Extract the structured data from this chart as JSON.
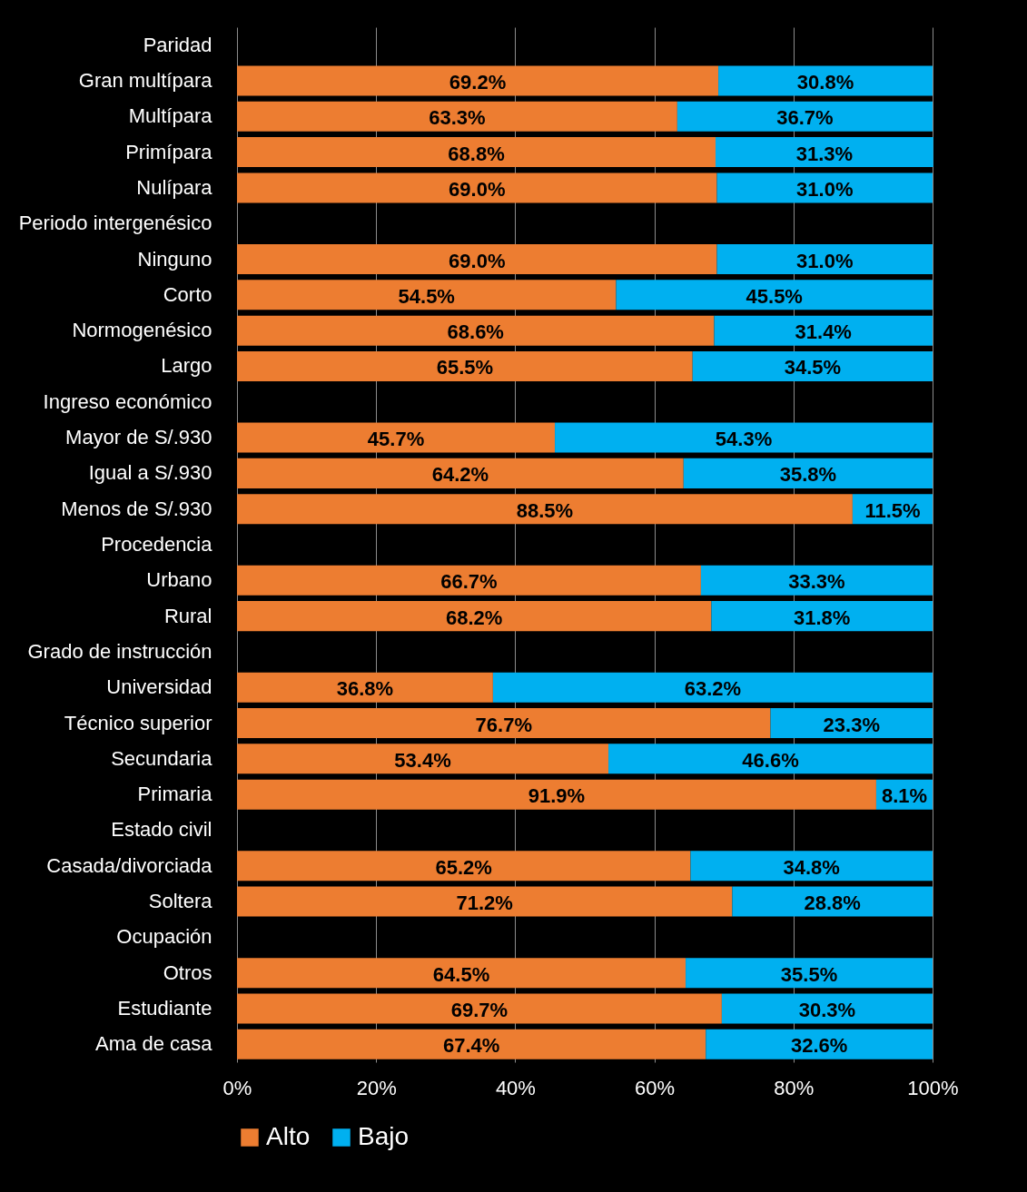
{
  "chart_data": {
    "type": "bar",
    "orientation": "horizontal",
    "stacked": true,
    "categories": [
      "Paridad",
      "Gran multípara",
      "Multípara",
      "Primípara",
      "Nulípara",
      "Periodo intergenésico",
      "Ninguno",
      "Corto",
      "Normogenésico",
      "Largo",
      "Ingreso económico",
      "Mayor de S/.930",
      "Igual a S/.930",
      "Menos de S/.930",
      "Procedencia",
      "Urbano",
      "Rural",
      "Grado de instrucción",
      "Universidad",
      "Técnico superior",
      "Secundaria",
      "Primaria",
      "Estado civil",
      "Casada/divorciada",
      "Soltera",
      "Ocupación",
      "Otros",
      "Estudiante",
      "Ama de casa"
    ],
    "series": [
      {
        "name": "Alto",
        "color": "#ed7d31",
        "values": [
          null,
          69.2,
          63.3,
          68.8,
          69.0,
          null,
          69.0,
          54.5,
          68.6,
          65.5,
          null,
          45.7,
          64.2,
          88.5,
          null,
          66.7,
          68.2,
          null,
          36.8,
          76.7,
          53.4,
          91.9,
          null,
          65.2,
          71.2,
          null,
          64.5,
          69.7,
          67.4
        ],
        "value_labels": [
          null,
          "69.2%",
          "63.3%",
          "68.8%",
          "69.0%",
          null,
          "69.0%",
          "54.5%",
          "68.6%",
          "65.5%",
          null,
          "45.7%",
          "64.2%",
          "88.5%",
          null,
          "66.7%",
          "68.2%",
          null,
          "36.8%",
          "76.7%",
          "53.4%",
          "91.9%",
          null,
          "65.2%",
          "71.2%",
          null,
          "64.5%",
          "69.7%",
          "67.4%"
        ]
      },
      {
        "name": "Bajo",
        "color": "#00b0f0",
        "values": [
          null,
          30.8,
          36.7,
          31.3,
          31.0,
          null,
          31.0,
          45.5,
          31.4,
          34.5,
          null,
          54.3,
          35.8,
          11.5,
          null,
          33.3,
          31.8,
          null,
          63.2,
          23.3,
          46.6,
          8.1,
          null,
          34.8,
          28.8,
          null,
          35.5,
          30.3,
          32.6
        ],
        "value_labels": [
          null,
          "30.8%",
          "36.7%",
          "31.3%",
          "31.0%",
          null,
          "31.0%",
          "45.5%",
          "31.4%",
          "34.5%",
          null,
          "54.3%",
          "35.8%",
          "11.5%",
          null,
          "33.3%",
          "31.8%",
          null,
          "63.2%",
          "23.3%",
          "46.6%",
          "8.1%",
          null,
          "34.8%",
          "28.8%",
          null,
          "35.5%",
          "30.3%",
          "32.6%"
        ]
      }
    ],
    "xlim": [
      0,
      100
    ],
    "xticks": [
      {
        "value": 0,
        "label": "0%"
      },
      {
        "value": 20,
        "label": "20%"
      },
      {
        "value": 40,
        "label": "40%"
      },
      {
        "value": 60,
        "label": "60%"
      },
      {
        "value": 80,
        "label": "80%"
      },
      {
        "value": 100,
        "label": "100%"
      }
    ],
    "grid": "x",
    "legend": "bottom"
  }
}
